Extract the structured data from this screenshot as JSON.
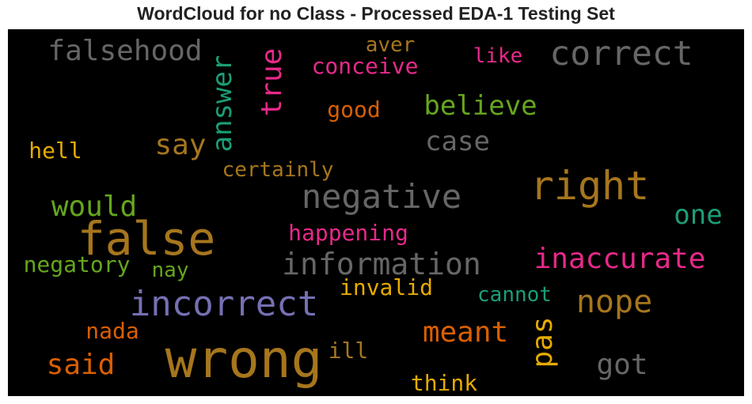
{
  "chart_data": {
    "type": "wordcloud",
    "title": "WordCloud for no Class - Processed EDA-1 Testing Set",
    "background": "#000000",
    "words": [
      {
        "text": "wrong",
        "color": "#A6761D",
        "weight": 1.0
      },
      {
        "text": "false",
        "color": "#A6761D",
        "weight": 0.9
      },
      {
        "text": "incorrect",
        "color": "#7570B3",
        "weight": 0.7
      },
      {
        "text": "right",
        "color": "#A6761D",
        "weight": 0.75
      },
      {
        "text": "negative",
        "color": "#666666",
        "weight": 0.65
      },
      {
        "text": "correct",
        "color": "#666666",
        "weight": 0.65
      },
      {
        "text": "information",
        "color": "#666666",
        "weight": 0.62
      },
      {
        "text": "nope",
        "color": "#A6761D",
        "weight": 0.62
      },
      {
        "text": "inaccurate",
        "color": "#E7298A",
        "weight": 0.58
      },
      {
        "text": "falsehood",
        "color": "#666666",
        "weight": 0.58
      },
      {
        "text": "would",
        "color": "#66A61E",
        "weight": 0.58
      },
      {
        "text": "meant",
        "color": "#D95F02",
        "weight": 0.58
      },
      {
        "text": "said",
        "color": "#D95F02",
        "weight": 0.55
      },
      {
        "text": "believe",
        "color": "#66A61E",
        "weight": 0.55
      },
      {
        "text": "got",
        "color": "#666666",
        "weight": 0.55
      },
      {
        "text": "answer",
        "color": "#1B9E77",
        "weight": 0.55
      },
      {
        "text": "true",
        "color": "#E7298A",
        "weight": 0.52
      },
      {
        "text": "say",
        "color": "#A6761D",
        "weight": 0.52
      },
      {
        "text": "case",
        "color": "#666666",
        "weight": 0.52
      },
      {
        "text": "pas",
        "color": "#E6AB02",
        "weight": 0.52
      },
      {
        "text": "one",
        "color": "#1B9E77",
        "weight": 0.5
      },
      {
        "text": "ill",
        "color": "#A6761D",
        "weight": 0.4
      },
      {
        "text": "negatory",
        "color": "#66A61E",
        "weight": 0.4
      },
      {
        "text": "conceive",
        "color": "#E7298A",
        "weight": 0.38
      },
      {
        "text": "happening",
        "color": "#E7298A",
        "weight": 0.38
      },
      {
        "text": "good",
        "color": "#D95F02",
        "weight": 0.38
      },
      {
        "text": "invalid",
        "color": "#E6AB02",
        "weight": 0.38
      },
      {
        "text": "hell",
        "color": "#E6AB02",
        "weight": 0.38
      },
      {
        "text": "think",
        "color": "#E6AB02",
        "weight": 0.38
      },
      {
        "text": "nada",
        "color": "#D95F02",
        "weight": 0.38
      },
      {
        "text": "cannot",
        "color": "#1B9E77",
        "weight": 0.36
      },
      {
        "text": "like",
        "color": "#E7298A",
        "weight": 0.36
      },
      {
        "text": "aver",
        "color": "#A6761D",
        "weight": 0.36
      },
      {
        "text": "certainly",
        "color": "#A6761D",
        "weight": 0.36
      },
      {
        "text": "nay",
        "color": "#66A61E",
        "weight": 0.36
      }
    ]
  }
}
